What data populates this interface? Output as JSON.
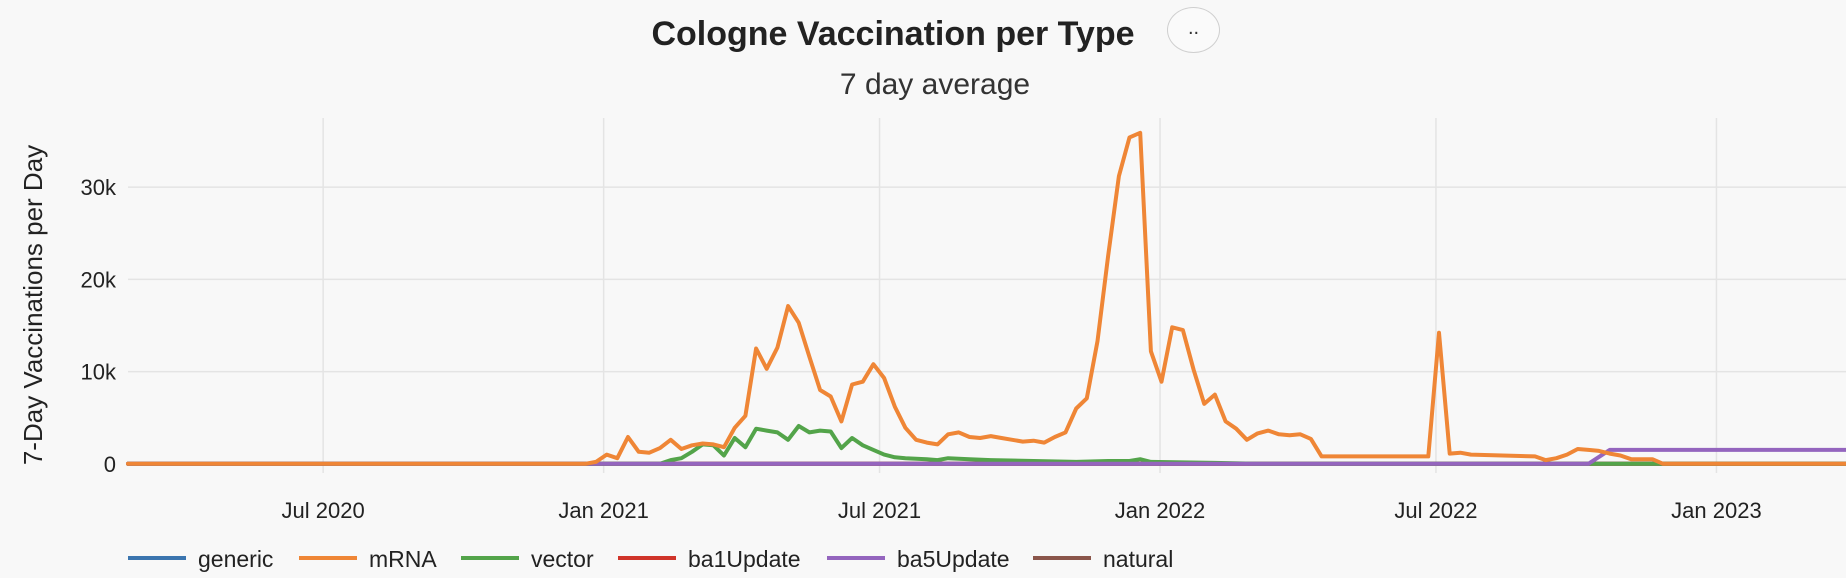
{
  "menu": {
    "button_label": ".."
  },
  "chart_data": {
    "type": "line",
    "title": "Cologne Vaccination per Type",
    "subtitle": "7 day average",
    "xlabel": "",
    "ylabel": "7-Day Vaccinations per Day",
    "x_ticks": [
      {
        "date": "2020-07-01",
        "label": "Jul 2020"
      },
      {
        "date": "2021-01-01",
        "label": "Jan 2021"
      },
      {
        "date": "2021-07-01",
        "label": "Jul 2021"
      },
      {
        "date": "2022-01-01",
        "label": "Jan 2022"
      },
      {
        "date": "2022-07-01",
        "label": "Jul 2022"
      },
      {
        "date": "2023-01-01",
        "label": "Jan 2023"
      }
    ],
    "y_ticks": [
      {
        "value": 0,
        "label": "0"
      },
      {
        "value": 10000,
        "label": "10k"
      },
      {
        "value": 20000,
        "label": "20k"
      },
      {
        "value": 30000,
        "label": "30k"
      }
    ],
    "xlim": [
      "2020-02-24",
      "2023-03-27"
    ],
    "ylim": [
      -1000,
      37500
    ],
    "grid": true,
    "legend_position": "bottom",
    "series": [
      {
        "name": "generic",
        "color": "#3b75af",
        "points": [
          [
            "2020-02-24",
            0
          ],
          [
            "2023-03-27",
            0
          ]
        ]
      },
      {
        "name": "mRNA",
        "color": "#ef8636",
        "points": [
          [
            "2020-02-24",
            0
          ],
          [
            "2020-12-20",
            0
          ],
          [
            "2020-12-27",
            200
          ],
          [
            "2021-01-03",
            1000
          ],
          [
            "2021-01-10",
            600
          ],
          [
            "2021-01-17",
            2900
          ],
          [
            "2021-01-24",
            1300
          ],
          [
            "2021-01-31",
            1200
          ],
          [
            "2021-02-07",
            1700
          ],
          [
            "2021-02-14",
            2600
          ],
          [
            "2021-02-21",
            1600
          ],
          [
            "2021-02-28",
            2000
          ],
          [
            "2021-03-07",
            2200
          ],
          [
            "2021-03-14",
            2100
          ],
          [
            "2021-03-21",
            1800
          ],
          [
            "2021-03-28",
            3900
          ],
          [
            "2021-04-04",
            5200
          ],
          [
            "2021-04-11",
            12500
          ],
          [
            "2021-04-18",
            10300
          ],
          [
            "2021-04-25",
            12600
          ],
          [
            "2021-05-02",
            17100
          ],
          [
            "2021-05-09",
            15300
          ],
          [
            "2021-05-16",
            11600
          ],
          [
            "2021-05-23",
            8000
          ],
          [
            "2021-05-30",
            7300
          ],
          [
            "2021-06-06",
            4600
          ],
          [
            "2021-06-13",
            8600
          ],
          [
            "2021-06-20",
            8900
          ],
          [
            "2021-06-27",
            10800
          ],
          [
            "2021-07-04",
            9300
          ],
          [
            "2021-07-11",
            6200
          ],
          [
            "2021-07-18",
            3900
          ],
          [
            "2021-07-25",
            2600
          ],
          [
            "2021-08-01",
            2300
          ],
          [
            "2021-08-08",
            2100
          ],
          [
            "2021-08-15",
            3200
          ],
          [
            "2021-08-22",
            3400
          ],
          [
            "2021-08-29",
            2900
          ],
          [
            "2021-09-05",
            2800
          ],
          [
            "2021-09-12",
            3000
          ],
          [
            "2021-09-19",
            2800
          ],
          [
            "2021-09-26",
            2600
          ],
          [
            "2021-10-03",
            2400
          ],
          [
            "2021-10-10",
            2500
          ],
          [
            "2021-10-17",
            2300
          ],
          [
            "2021-10-24",
            2900
          ],
          [
            "2021-10-31",
            3400
          ],
          [
            "2021-11-07",
            6000
          ],
          [
            "2021-11-14",
            7100
          ],
          [
            "2021-11-21",
            13300
          ],
          [
            "2021-11-28",
            22600
          ],
          [
            "2021-12-05",
            31200
          ],
          [
            "2021-12-12",
            35400
          ],
          [
            "2021-12-19",
            35900
          ],
          [
            "2021-12-26",
            12200
          ],
          [
            "2022-01-02",
            8900
          ],
          [
            "2022-01-09",
            14800
          ],
          [
            "2022-01-16",
            14500
          ],
          [
            "2022-01-23",
            10200
          ],
          [
            "2022-01-30",
            6500
          ],
          [
            "2022-02-06",
            7500
          ],
          [
            "2022-02-13",
            4600
          ],
          [
            "2022-02-20",
            3800
          ],
          [
            "2022-02-27",
            2600
          ],
          [
            "2022-03-06",
            3300
          ],
          [
            "2022-03-13",
            3600
          ],
          [
            "2022-03-20",
            3200
          ],
          [
            "2022-03-27",
            3100
          ],
          [
            "2022-04-03",
            3200
          ],
          [
            "2022-04-10",
            2700
          ],
          [
            "2022-04-17",
            800
          ],
          [
            "2022-06-26",
            800
          ],
          [
            "2022-07-03",
            14200
          ],
          [
            "2022-07-10",
            1100
          ],
          [
            "2022-07-17",
            1200
          ],
          [
            "2022-07-24",
            1000
          ],
          [
            "2022-09-04",
            800
          ],
          [
            "2022-09-11",
            400
          ],
          [
            "2022-09-18",
            600
          ],
          [
            "2022-09-25",
            1000
          ],
          [
            "2022-10-02",
            1600
          ],
          [
            "2022-10-09",
            1500
          ],
          [
            "2022-10-16",
            1400
          ],
          [
            "2022-10-23",
            1100
          ],
          [
            "2022-10-30",
            900
          ],
          [
            "2022-11-06",
            500
          ],
          [
            "2022-11-20",
            500
          ],
          [
            "2022-11-27",
            0
          ],
          [
            "2023-03-27",
            0
          ]
        ]
      },
      {
        "name": "vector",
        "color": "#53a44a",
        "points": [
          [
            "2020-02-24",
            0
          ],
          [
            "2021-02-07",
            0
          ],
          [
            "2021-02-14",
            400
          ],
          [
            "2021-02-21",
            600
          ],
          [
            "2021-02-28",
            1300
          ],
          [
            "2021-03-07",
            2100
          ],
          [
            "2021-03-14",
            2000
          ],
          [
            "2021-03-21",
            900
          ],
          [
            "2021-03-28",
            2800
          ],
          [
            "2021-04-04",
            1800
          ],
          [
            "2021-04-11",
            3800
          ],
          [
            "2021-04-18",
            3600
          ],
          [
            "2021-04-25",
            3400
          ],
          [
            "2021-05-02",
            2600
          ],
          [
            "2021-05-09",
            4100
          ],
          [
            "2021-05-16",
            3400
          ],
          [
            "2021-05-23",
            3600
          ],
          [
            "2021-05-30",
            3500
          ],
          [
            "2021-06-06",
            1700
          ],
          [
            "2021-06-13",
            2800
          ],
          [
            "2021-06-20",
            2000
          ],
          [
            "2021-06-27",
            1500
          ],
          [
            "2021-07-04",
            1000
          ],
          [
            "2021-07-11",
            700
          ],
          [
            "2021-07-18",
            600
          ],
          [
            "2021-08-01",
            500
          ],
          [
            "2021-08-08",
            400
          ],
          [
            "2021-08-15",
            600
          ],
          [
            "2021-08-29",
            500
          ],
          [
            "2021-09-12",
            400
          ],
          [
            "2021-10-10",
            300
          ],
          [
            "2021-11-07",
            200
          ],
          [
            "2021-11-28",
            300
          ],
          [
            "2021-12-12",
            300
          ],
          [
            "2021-12-19",
            500
          ],
          [
            "2021-12-26",
            200
          ],
          [
            "2022-02-06",
            100
          ],
          [
            "2022-03-06",
            0
          ],
          [
            "2023-03-27",
            0
          ]
        ]
      },
      {
        "name": "ba1Update",
        "color": "#d0342a",
        "points": [
          [
            "2020-02-24",
            0
          ],
          [
            "2023-03-27",
            0
          ]
        ]
      },
      {
        "name": "ba5Update",
        "color": "#9465be",
        "points": [
          [
            "2020-02-24",
            0
          ],
          [
            "2022-10-09",
            0
          ],
          [
            "2022-10-23",
            1500
          ],
          [
            "2023-03-27",
            1500
          ]
        ]
      },
      {
        "name": "natural",
        "color": "#8b564b",
        "points": [
          [
            "2020-02-24",
            0
          ],
          [
            "2023-03-27",
            0
          ]
        ]
      }
    ]
  }
}
